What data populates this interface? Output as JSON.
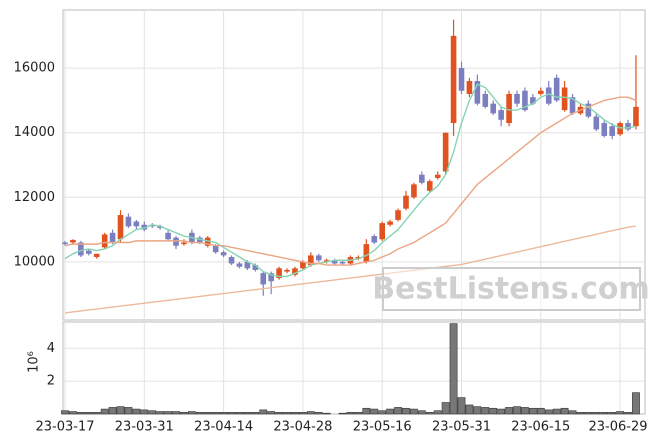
{
  "chart_data": [
    {
      "type": "candlestick",
      "categories": [
        "23-03-17",
        null,
        null,
        null,
        null,
        null,
        null,
        null,
        null,
        null,
        "23-03-31",
        null,
        null,
        null,
        null,
        null,
        null,
        null,
        null,
        null,
        "23-04-14",
        null,
        null,
        null,
        null,
        null,
        null,
        null,
        null,
        null,
        "23-04-28",
        null,
        null,
        null,
        null,
        null,
        null,
        null,
        null,
        null,
        "23-05-16",
        null,
        null,
        null,
        null,
        null,
        null,
        null,
        null,
        null,
        "23-05-31",
        null,
        null,
        null,
        null,
        null,
        null,
        null,
        null,
        null,
        "23-06-15",
        null,
        null,
        null,
        null,
        null,
        null,
        null,
        null,
        null,
        "23-06-29",
        null,
        null
      ],
      "open": [
        10600,
        10600,
        10600,
        10350,
        10150,
        10450,
        10900,
        10700,
        11400,
        11250,
        11150,
        11150,
        11100,
        10900,
        10750,
        10550,
        10900,
        10750,
        10500,
        10500,
        10300,
        10150,
        9950,
        10000,
        9900,
        9650,
        9650,
        9500,
        9700,
        9600,
        9800,
        9900,
        10200,
        10000,
        10050,
        10000,
        9950,
        10100,
        10000,
        10800,
        10700,
        11150,
        11300,
        11650,
        12000,
        12700,
        12200,
        12600,
        12800,
        14300,
        16000,
        15200,
        15600,
        15200,
        14900,
        14700,
        14300,
        15200,
        15300,
        15100,
        15200,
        15400,
        15700,
        14700,
        15100,
        14600,
        14900,
        14500,
        14300,
        14200,
        13950,
        14300,
        14200
      ],
      "high": [
        10650,
        10700,
        10650,
        10400,
        10250,
        10900,
        11000,
        11600,
        11500,
        11300,
        11250,
        11200,
        11150,
        11000,
        10800,
        10700,
        11000,
        10800,
        10800,
        10550,
        10350,
        10200,
        10000,
        10050,
        9950,
        9700,
        9700,
        9850,
        9800,
        9850,
        10050,
        10300,
        10250,
        10100,
        10100,
        10050,
        10200,
        10200,
        10700,
        10850,
        11250,
        11300,
        11650,
        12200,
        12450,
        12800,
        12550,
        12800,
        14000,
        17500,
        16200,
        15700,
        15800,
        15300,
        15000,
        14800,
        15300,
        15300,
        15400,
        15200,
        15400,
        15600,
        15800,
        15600,
        15200,
        14900,
        15000,
        14600,
        14400,
        14300,
        14350,
        14400,
        16400
      ],
      "low": [
        10500,
        10550,
        10150,
        10200,
        10100,
        10400,
        10550,
        10600,
        11050,
        11000,
        10950,
        11050,
        11000,
        10650,
        10400,
        10500,
        10550,
        10550,
        10450,
        10250,
        10150,
        9900,
        9800,
        9750,
        9700,
        8950,
        9000,
        9450,
        9650,
        9550,
        9750,
        9850,
        10000,
        9950,
        9900,
        9900,
        9900,
        10050,
        9950,
        10550,
        10650,
        11100,
        11250,
        11600,
        11950,
        12400,
        12150,
        12550,
        12700,
        13900,
        15200,
        15100,
        14850,
        14750,
        14550,
        14200,
        14200,
        14800,
        14650,
        14850,
        15150,
        14850,
        14950,
        14650,
        14550,
        14550,
        14450,
        14050,
        13850,
        13800,
        13900,
        14050,
        14100
      ],
      "close": [
        10550,
        10680,
        10200,
        10250,
        10250,
        10850,
        10600,
        11450,
        11100,
        11100,
        11000,
        11100,
        11050,
        10700,
        10500,
        10600,
        10600,
        10600,
        10750,
        10300,
        10200,
        9950,
        9850,
        9800,
        9750,
        9300,
        9400,
        9800,
        9750,
        9800,
        10000,
        10200,
        10050,
        10050,
        9950,
        9950,
        10150,
        10150,
        10550,
        10600,
        11200,
        11250,
        11600,
        12050,
        12400,
        12450,
        12500,
        12700,
        14000,
        17000,
        15300,
        15600,
        14900,
        14800,
        14600,
        14400,
        15200,
        14900,
        14700,
        14900,
        15300,
        14900,
        15000,
        15400,
        14600,
        14800,
        14500,
        14100,
        13900,
        13900,
        14300,
        14100,
        14800
      ],
      "up_color": "#e0521f",
      "down_color": "#7b7fc0",
      "series": [
        {
          "color": "#86d4b4",
          "values": [
            10100,
            10250,
            10350,
            10400,
            10350,
            10400,
            10500,
            10700,
            10850,
            11000,
            11050,
            11150,
            11100,
            11000,
            10900,
            10800,
            10750,
            10700,
            10650,
            10600,
            10450,
            10300,
            10150,
            10000,
            9900,
            9700,
            9600,
            9550,
            9550,
            9650,
            9750,
            9900,
            9950,
            10000,
            10050,
            10050,
            10050,
            10100,
            10200,
            10350,
            10600,
            10800,
            11000,
            11300,
            11600,
            11900,
            12150,
            12350,
            12700,
            13400,
            14300,
            15000,
            15500,
            15400,
            15100,
            14800,
            14700,
            14700,
            14800,
            14900,
            15100,
            15200,
            15100,
            15100,
            15050,
            14900,
            14800,
            14600,
            14400,
            14250,
            14150,
            14150,
            14200
          ]
        },
        {
          "color": "#eaa582",
          "values": [
            10500,
            10550,
            10550,
            10550,
            10550,
            10600,
            10600,
            10600,
            10600,
            10650,
            10650,
            10650,
            10650,
            10650,
            10650,
            10650,
            10600,
            10600,
            10550,
            10500,
            10500,
            10450,
            10400,
            10350,
            10300,
            10250,
            10200,
            10150,
            10100,
            10050,
            10000,
            9950,
            9950,
            9900,
            9900,
            9900,
            9900,
            9950,
            10000,
            10050,
            10150,
            10250,
            10400,
            10500,
            10600,
            10750,
            10900,
            11050,
            11200,
            11500,
            11800,
            12100,
            12400,
            12600,
            12800,
            13000,
            13200,
            13400,
            13600,
            13800,
            14000,
            14150,
            14300,
            14450,
            14600,
            14700,
            14800,
            14900,
            15000,
            15050,
            15100,
            15100,
            15000
          ]
        },
        {
          "color": "#edb99c",
          "values": [
            8420,
            8450,
            8480,
            8510,
            8540,
            8570,
            8600,
            8630,
            8660,
            8690,
            8720,
            8750,
            8780,
            8810,
            8840,
            8870,
            8900,
            8930,
            8960,
            8990,
            9020,
            9050,
            9080,
            9110,
            9140,
            9170,
            9200,
            9230,
            9260,
            9290,
            9320,
            9350,
            9380,
            9410,
            9440,
            9470,
            9500,
            9530,
            9560,
            9590,
            9620,
            9650,
            9680,
            9710,
            9740,
            9770,
            9800,
            9830,
            9860,
            9890,
            9920,
            9975,
            10030,
            10085,
            10140,
            10195,
            10250,
            10305,
            10360,
            10415,
            10470,
            10525,
            10580,
            10635,
            10690,
            10745,
            10800,
            10855,
            10910,
            10965,
            11020,
            11075,
            11110
          ]
        }
      ],
      "ylim": [
        8200,
        17800
      ],
      "yticks": [
        10000,
        12000,
        14000,
        16000
      ],
      "grid": true,
      "watermark": "BestListens.com"
    },
    {
      "type": "bar",
      "y_label": "10⁶",
      "color": "#777777",
      "values": [
        0.2,
        0.15,
        0.1,
        0.1,
        0.1,
        0.3,
        0.4,
        0.45,
        0.4,
        0.3,
        0.25,
        0.2,
        0.15,
        0.15,
        0.15,
        0.1,
        0.15,
        0.1,
        0.1,
        0.1,
        0.1,
        0.1,
        0.1,
        0.1,
        0.1,
        0.25,
        0.15,
        0.1,
        0.1,
        0.1,
        0.1,
        0.15,
        0.1,
        0.05,
        0,
        0.05,
        0.1,
        0.1,
        0.35,
        0.3,
        0.2,
        0.3,
        0.4,
        0.35,
        0.3,
        0.2,
        0.1,
        0.2,
        0.7,
        5.5,
        1.0,
        0.55,
        0.45,
        0.4,
        0.35,
        0.3,
        0.4,
        0.45,
        0.4,
        0.35,
        0.35,
        0.25,
        0.3,
        0.35,
        0.2,
        0.1,
        0.1,
        0.1,
        0.1,
        0.1,
        0.15,
        0.1,
        1.3
      ],
      "ylim": [
        0,
        5.6
      ],
      "yticks": [
        2,
        4
      ],
      "grid": true
    }
  ]
}
